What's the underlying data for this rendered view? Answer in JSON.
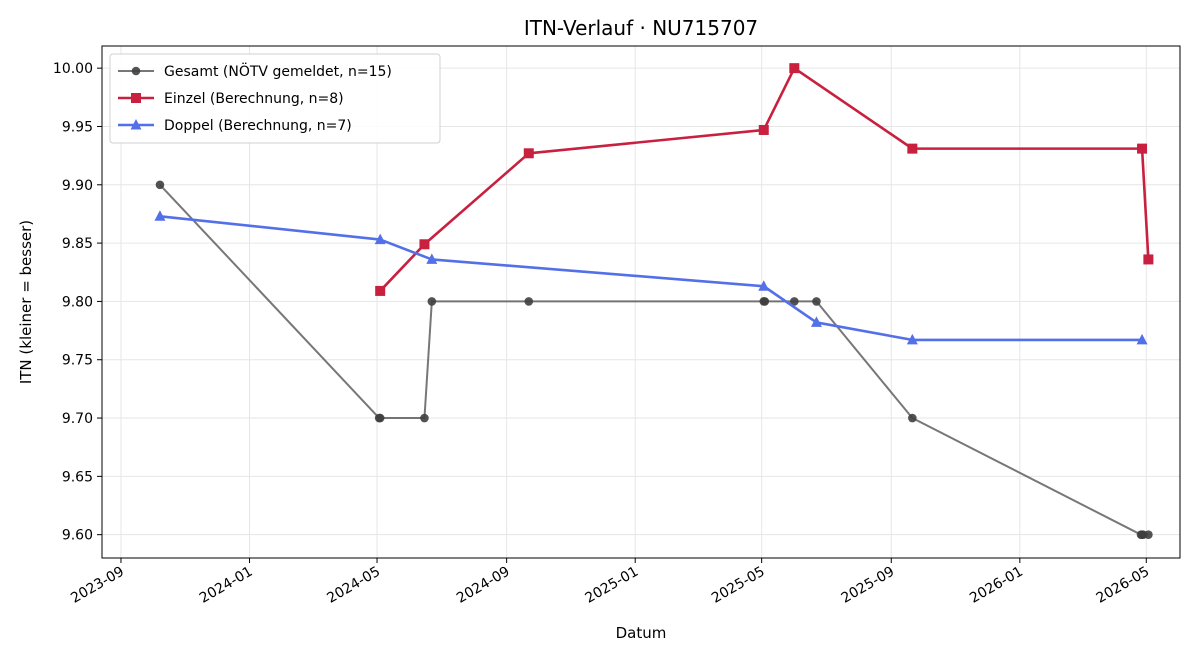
{
  "chart_data": {
    "type": "line",
    "title": "ITN-Verlauf · NU715707",
    "xlabel": "Datum",
    "ylabel": "ITN  (kleiner = besser)",
    "xlim": [
      "2023-08-14",
      "2026-06-02"
    ],
    "ylim": [
      9.58,
      10.019
    ],
    "x_ticks": [
      "2023-09",
      "2024-01",
      "2024-05",
      "2024-09",
      "2025-01",
      "2025-05",
      "2025-09",
      "2026-01",
      "2026-05"
    ],
    "y_ticks": [
      "9.60",
      "9.65",
      "9.70",
      "9.75",
      "9.80",
      "9.85",
      "9.90",
      "9.95",
      "10.00"
    ],
    "grid": true,
    "legend_position": "top-left",
    "series": [
      {
        "name": "Gesamt (NÖTV gemeldet, n=15)",
        "color": "#555555",
        "marker": "circle",
        "points": [
          {
            "x": "2023-10-08",
            "y": 9.9
          },
          {
            "x": "2024-05-03",
            "y": 9.7
          },
          {
            "x": "2024-05-04",
            "y": 9.7
          },
          {
            "x": "2024-06-15",
            "y": 9.7
          },
          {
            "x": "2024-06-22",
            "y": 9.8
          },
          {
            "x": "2024-09-22",
            "y": 9.8
          },
          {
            "x": "2025-05-03",
            "y": 9.8
          },
          {
            "x": "2025-05-04",
            "y": 9.8
          },
          {
            "x": "2025-06-01",
            "y": 9.8
          },
          {
            "x": "2025-06-22",
            "y": 9.8
          },
          {
            "x": "2025-09-21",
            "y": 9.7
          },
          {
            "x": "2026-04-26",
            "y": 9.6
          },
          {
            "x": "2026-04-27",
            "y": 9.6
          },
          {
            "x": "2026-04-28",
            "y": 9.6
          },
          {
            "x": "2026-05-03",
            "y": 9.6
          }
        ]
      },
      {
        "name": "Einzel (Berechnung, n=8)",
        "color": "#c8203e",
        "marker": "square",
        "points": [
          {
            "x": "2024-05-04",
            "y": 9.809
          },
          {
            "x": "2024-06-15",
            "y": 9.849
          },
          {
            "x": "2024-09-22",
            "y": 9.927
          },
          {
            "x": "2025-05-03",
            "y": 9.947
          },
          {
            "x": "2025-06-01",
            "y": 10.0
          },
          {
            "x": "2025-09-21",
            "y": 9.931
          },
          {
            "x": "2026-04-27",
            "y": 9.931
          },
          {
            "x": "2026-05-03",
            "y": 9.836
          }
        ]
      },
      {
        "name": "Doppel (Berechnung, n=7)",
        "color": "#5470e8",
        "marker": "triangle",
        "points": [
          {
            "x": "2023-10-08",
            "y": 9.873
          },
          {
            "x": "2024-05-04",
            "y": 9.853
          },
          {
            "x": "2024-06-22",
            "y": 9.836
          },
          {
            "x": "2025-05-03",
            "y": 9.813
          },
          {
            "x": "2025-06-22",
            "y": 9.782
          },
          {
            "x": "2025-09-21",
            "y": 9.767
          },
          {
            "x": "2026-04-27",
            "y": 9.767
          }
        ]
      }
    ]
  }
}
